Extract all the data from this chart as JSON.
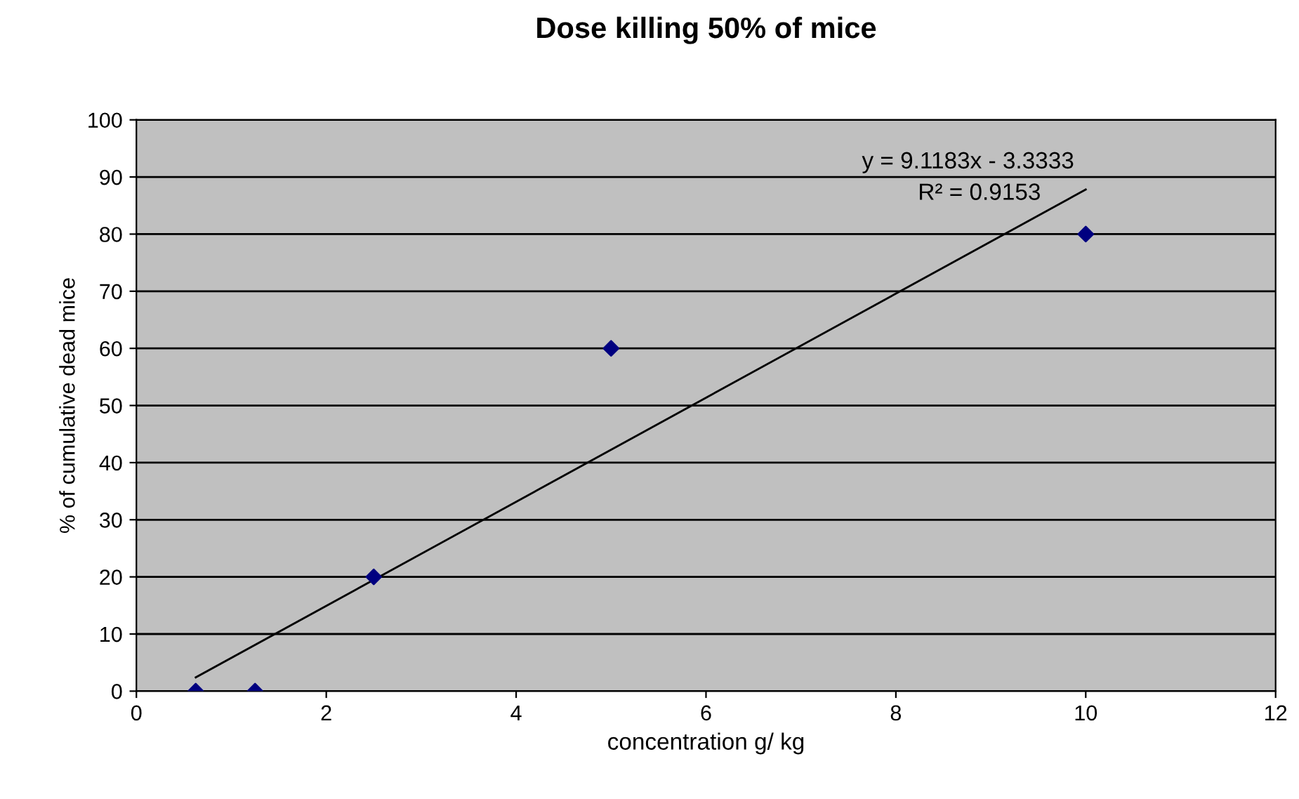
{
  "chart_data": {
    "type": "scatter",
    "title": "Dose killing 50% of mice",
    "xlabel": "concentration g/ kg",
    "ylabel": "% of cumulative dead mice",
    "series": [
      {
        "color": "#000080",
        "x": [
          0.625,
          1.25,
          2.5,
          5,
          10
        ],
        "values": [
          0,
          0,
          20,
          60,
          80
        ],
        "marker": "diamond"
      },
      {
        "type": "line",
        "color": "#000000",
        "x": [
          0.625,
          10
        ],
        "values": [
          2.4,
          87.8
        ],
        "marker": "none",
        "line_style": "solid"
      }
    ],
    "annotations": [
      "y = 9.1183x - 3.3333",
      "R² = 0.9153"
    ],
    "xlim": [
      0,
      12
    ],
    "xticks": [
      0,
      2,
      4,
      6,
      8,
      10,
      12
    ],
    "ylim": [
      0,
      100
    ],
    "yticks": [
      0,
      10,
      20,
      30,
      40,
      50,
      60,
      70,
      80,
      90,
      100
    ],
    "grid": "y",
    "legend": false
  }
}
